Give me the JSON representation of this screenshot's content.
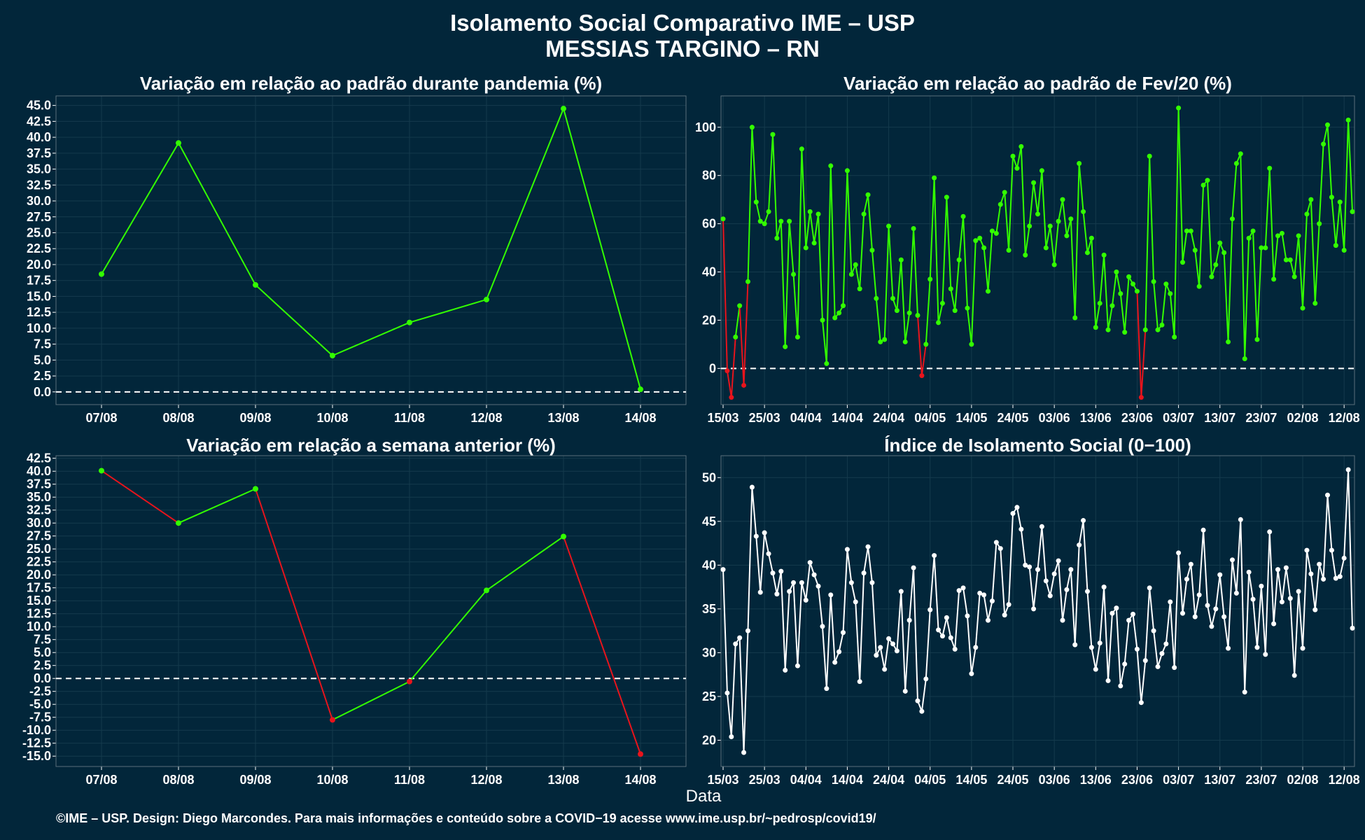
{
  "title": "Isolamento Social Comparativo IME – USP",
  "subtitle": "MESSIAS TARGINO – RN",
  "xlabel": "Data",
  "footer": "©IME – USP. Design: Diego Marcondes. Para mais informações e conteúdo sobre a COVID−19 acesse www.ime.usp.br/~pedrosp/covid19/",
  "colors": {
    "background": "#02263a",
    "panel_border": "#5a6f7b",
    "grid": "#143a4c",
    "positive": "#33ff00",
    "negative": "#e8141c",
    "index": "#ffffff"
  },
  "chart_data": [
    {
      "id": "pandemia",
      "type": "line",
      "title": "Variação em relação ao padrão durante pandemia (%)",
      "categories": [
        "07/08",
        "08/08",
        "09/08",
        "10/08",
        "11/08",
        "12/08",
        "13/08",
        "14/08"
      ],
      "values": [
        18.5,
        39.1,
        16.8,
        5.7,
        10.9,
        14.5,
        44.5,
        0.4
      ],
      "ylim": [
        -2,
        46.5
      ],
      "yticks": [
        0,
        2.5,
        5,
        7.5,
        10,
        12.5,
        15,
        17.5,
        20,
        22.5,
        25,
        27.5,
        30,
        32.5,
        35,
        37.5,
        40,
        42.5,
        45
      ],
      "ytick_decimals": 1,
      "zero_line": true
    },
    {
      "id": "fev20",
      "type": "line",
      "title": "Variação em relação ao padrão de Fev/20 (%)",
      "start_date": "15/03",
      "xticks": [
        "15/03",
        "25/03",
        "04/04",
        "14/04",
        "24/04",
        "04/05",
        "14/05",
        "24/05",
        "03/06",
        "13/06",
        "23/06",
        "03/07",
        "13/07",
        "23/07",
        "02/08",
        "12/08"
      ],
      "values": [
        62,
        -1,
        -12,
        13,
        26,
        -7,
        36,
        100,
        69,
        61,
        60,
        65,
        97,
        54,
        61,
        9,
        61,
        39,
        13,
        91,
        50,
        65,
        52,
        64,
        20,
        2,
        84,
        21,
        23,
        26,
        82,
        39,
        43,
        33,
        64,
        72,
        49,
        29,
        11,
        12,
        59,
        29,
        24,
        45,
        11,
        23,
        58,
        22,
        -3,
        10,
        37,
        79,
        19,
        27,
        71,
        33,
        24,
        45,
        63,
        25,
        10,
        53,
        54,
        50,
        32,
        57,
        56,
        68,
        73,
        49,
        88,
        83,
        92,
        47,
        59,
        77,
        64,
        82,
        50,
        59,
        43,
        61,
        70,
        55,
        62,
        21,
        85,
        65,
        48,
        54,
        17,
        27,
        47,
        16,
        26,
        40,
        31,
        15,
        38,
        35,
        32,
        -12,
        16,
        88,
        36,
        16,
        18,
        35,
        31,
        13,
        108,
        44,
        57,
        57,
        49,
        34,
        76,
        78,
        38,
        43,
        52,
        48,
        11,
        62,
        85,
        89,
        4,
        54,
        57,
        12,
        50,
        50,
        83,
        37,
        55,
        56,
        45,
        45,
        38,
        55,
        25,
        64,
        70,
        27,
        60,
        93,
        101,
        71,
        51,
        69,
        49,
        103,
        65
      ],
      "ylim": [
        -15,
        113
      ],
      "yticks": [
        0,
        20,
        40,
        60,
        80,
        100
      ],
      "ytick_decimals": 0,
      "zero_line": true
    },
    {
      "id": "semana",
      "type": "line",
      "title": "Variação em relação a semana anterior (%)",
      "categories": [
        "07/08",
        "08/08",
        "09/08",
        "10/08",
        "11/08",
        "12/08",
        "13/08",
        "14/08"
      ],
      "values": [
        40.1,
        30.0,
        36.6,
        -8.0,
        -0.6,
        17.0,
        27.4,
        -14.6
      ],
      "ylim": [
        -17,
        43
      ],
      "yticks": [
        -15,
        -12.5,
        -10,
        -7.5,
        -5,
        -2.5,
        0,
        2.5,
        5,
        7.5,
        10,
        12.5,
        15,
        17.5,
        20,
        22.5,
        25,
        27.5,
        30,
        32.5,
        35,
        37.5,
        40,
        42.5
      ],
      "ytick_decimals": 1,
      "zero_line": true
    },
    {
      "id": "indice",
      "type": "line",
      "title": "Índice de Isolamento Social (0−100)",
      "start_date": "15/03",
      "xticks": [
        "15/03",
        "25/03",
        "04/04",
        "14/04",
        "24/04",
        "04/05",
        "14/05",
        "24/05",
        "03/06",
        "13/06",
        "23/06",
        "03/07",
        "13/07",
        "23/07",
        "02/08",
        "12/08"
      ],
      "values": [
        39.5,
        25.4,
        20.4,
        31.0,
        31.7,
        18.6,
        32.5,
        48.9,
        43.3,
        36.9,
        43.7,
        41.3,
        39.1,
        36.7,
        39.3,
        28.0,
        37.0,
        38.0,
        28.5,
        38.0,
        36.0,
        40.3,
        38.9,
        37.6,
        33.0,
        25.9,
        36.6,
        28.9,
        30.1,
        32.3,
        41.8,
        38.0,
        35.8,
        26.7,
        39.1,
        42.1,
        38.0,
        29.7,
        30.6,
        28.1,
        31.6,
        31.0,
        30.2,
        37.0,
        25.6,
        33.7,
        39.7,
        24.5,
        23.3,
        27.0,
        34.9,
        41.1,
        32.6,
        31.9,
        34.0,
        31.7,
        30.4,
        37.1,
        37.4,
        34.2,
        27.6,
        30.6,
        36.8,
        36.6,
        33.7,
        35.9,
        42.6,
        41.9,
        34.3,
        35.5,
        45.9,
        46.6,
        44.1,
        40.0,
        39.8,
        35.0,
        39.5,
        44.4,
        38.2,
        36.5,
        39.0,
        40.5,
        33.7,
        37.2,
        39.5,
        30.9,
        42.3,
        45.1,
        37.0,
        30.6,
        28.1,
        31.1,
        37.5,
        26.8,
        34.5,
        35.1,
        26.2,
        28.7,
        33.7,
        34.4,
        30.4,
        24.3,
        29.1,
        37.4,
        32.5,
        28.4,
        29.9,
        31.0,
        35.8,
        28.3,
        41.4,
        34.5,
        38.4,
        40.1,
        34.1,
        36.6,
        44.0,
        35.4,
        33.0,
        35.0,
        38.9,
        34.1,
        30.5,
        40.6,
        36.8,
        45.2,
        25.5,
        39.2,
        36.1,
        30.6,
        37.6,
        29.8,
        43.8,
        33.3,
        39.5,
        35.8,
        39.7,
        36.2,
        27.4,
        37.0,
        30.5,
        41.7,
        39.0,
        34.9,
        40.1,
        38.4,
        48.0,
        41.7,
        38.5,
        38.7,
        40.8,
        50.9,
        32.8
      ],
      "ylim": [
        17,
        52.5
      ],
      "yticks": [
        20,
        25,
        30,
        35,
        40,
        45,
        50
      ],
      "ytick_decimals": 0,
      "zero_line": false
    }
  ]
}
